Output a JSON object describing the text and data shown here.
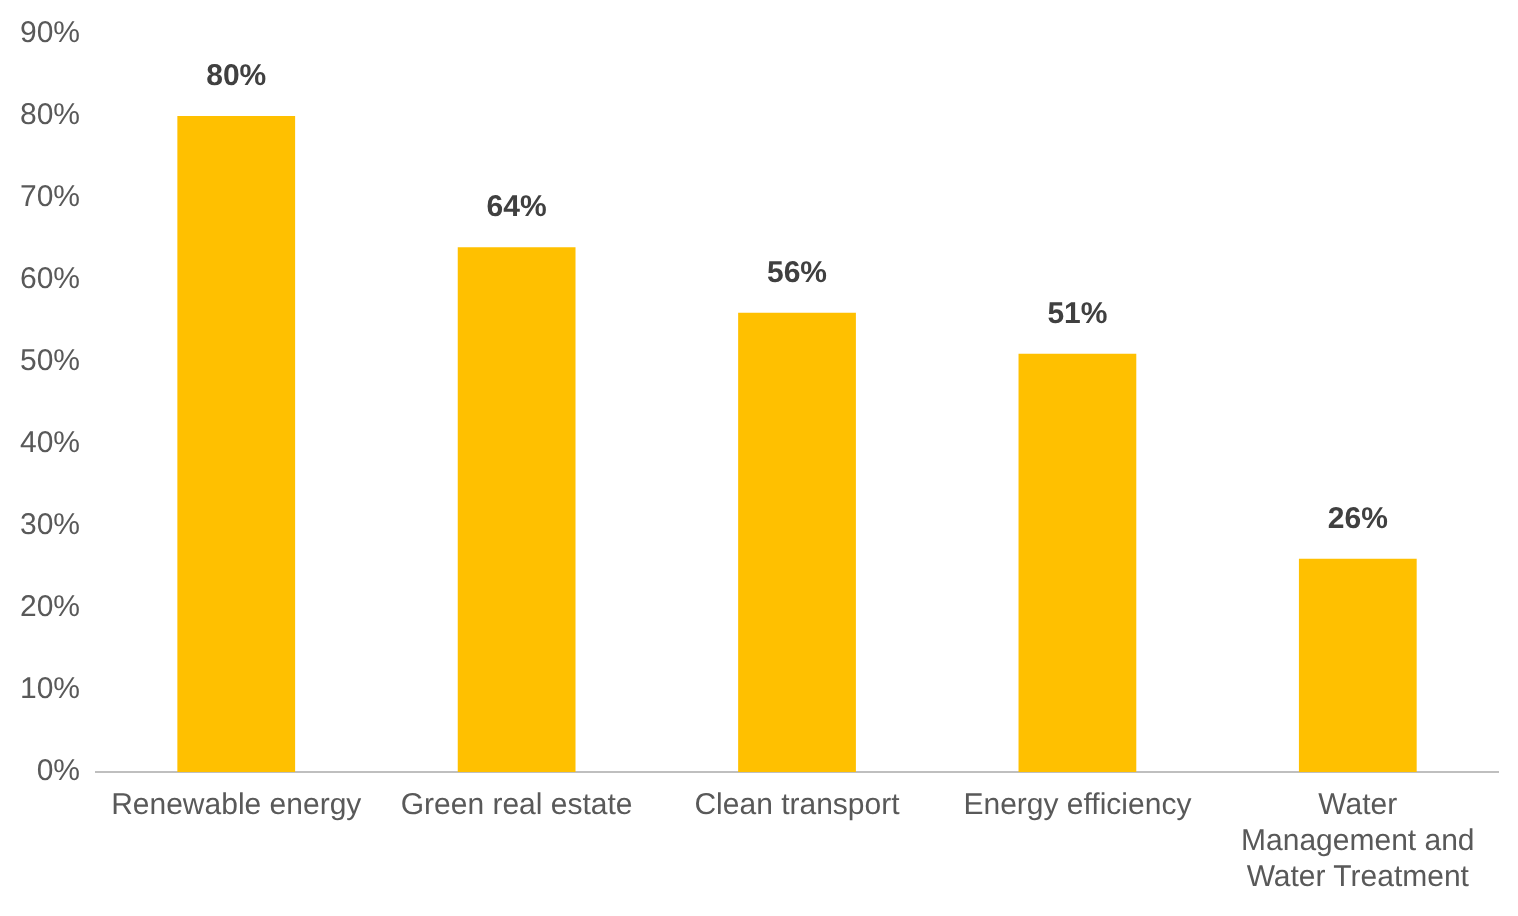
{
  "chart_data": {
    "type": "bar",
    "categories": [
      "Renewable energy",
      "Green real estate",
      "Clean transport",
      "Energy efficiency",
      "Water Management and Water Treatment"
    ],
    "values": [
      80,
      64,
      56,
      51,
      26
    ],
    "value_labels": [
      "80%",
      "64%",
      "56%",
      "51%",
      "26%"
    ],
    "color": "#ffc000",
    "ylim": [
      0,
      90
    ],
    "yticks": [
      {
        "value": 0,
        "label": "0%"
      },
      {
        "value": 10,
        "label": "10%"
      },
      {
        "value": 20,
        "label": "20%"
      },
      {
        "value": 30,
        "label": "30%"
      },
      {
        "value": 40,
        "label": "40%"
      },
      {
        "value": 50,
        "label": "50%"
      },
      {
        "value": 60,
        "label": "60%"
      },
      {
        "value": 70,
        "label": "70%"
      },
      {
        "value": 80,
        "label": "80%"
      },
      {
        "value": 90,
        "label": "90%"
      }
    ],
    "grid": false,
    "legend": false
  }
}
